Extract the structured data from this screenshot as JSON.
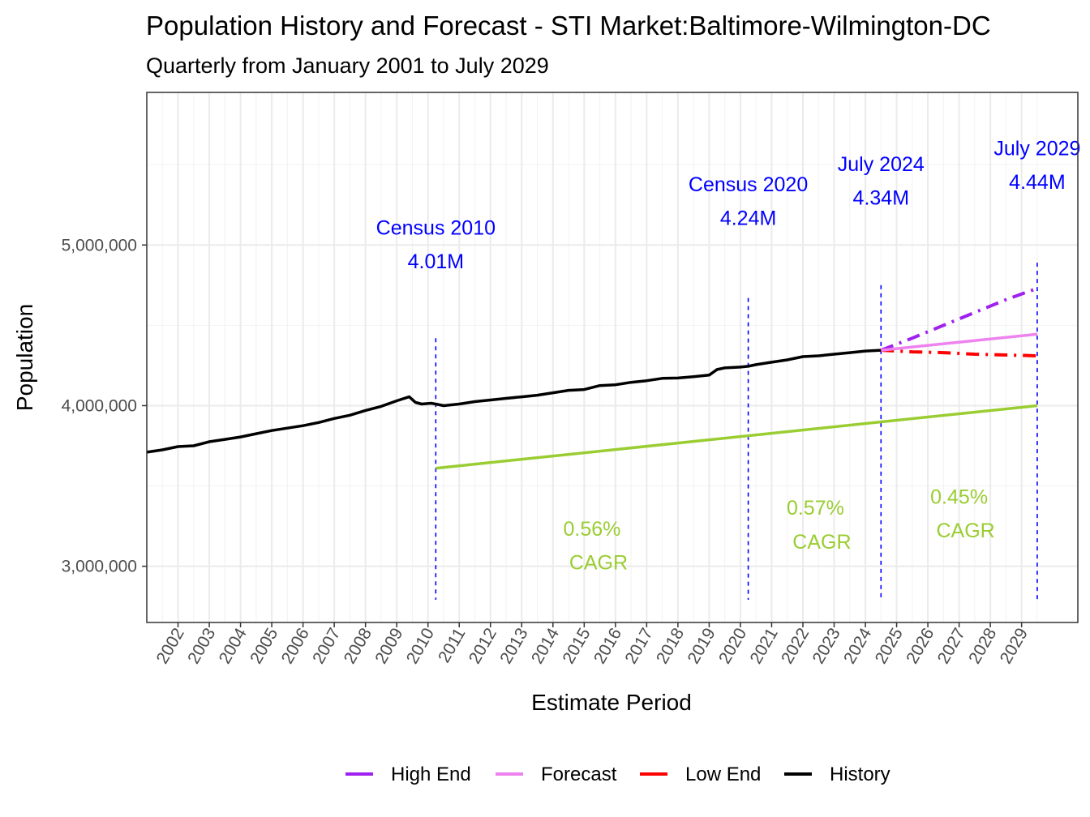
{
  "chart_data": {
    "type": "line",
    "title": "Population History and Forecast - STI Market:Baltimore-Wilmington-DC",
    "subtitle": "Quarterly from January 2001 to July 2029",
    "xlabel": "Estimate Period",
    "ylabel": "Population",
    "xlim": [
      2001,
      2030.8
    ],
    "ylim": [
      2650000,
      5950000
    ],
    "y_ticks": [
      3000000,
      4000000,
      5000000
    ],
    "y_tick_labels": [
      "3,000,000",
      "4,000,000",
      "5,000,000"
    ],
    "x_ticks": [
      2002,
      2003,
      2004,
      2005,
      2006,
      2007,
      2008,
      2009,
      2010,
      2011,
      2012,
      2013,
      2014,
      2015,
      2016,
      2017,
      2018,
      2019,
      2020,
      2021,
      2022,
      2023,
      2024,
      2025,
      2026,
      2027,
      2028,
      2029
    ],
    "x_tick_labels": [
      "2002",
      "2003",
      "2004",
      "2005",
      "2006",
      "2007",
      "2008",
      "2009",
      "2010",
      "2011",
      "2012",
      "2013",
      "2014",
      "2015",
      "2016",
      "2017",
      "2018",
      "2019",
      "2020",
      "2021",
      "2022",
      "2023",
      "2024",
      "2025",
      "2026",
      "2027",
      "2028",
      "2029"
    ],
    "series": [
      {
        "name": "History",
        "color": "#000000",
        "dash": "solid",
        "x": [
          2001.0,
          2001.5,
          2002.0,
          2002.5,
          2003.0,
          2003.5,
          2004.0,
          2004.5,
          2005.0,
          2005.5,
          2006.0,
          2006.5,
          2007.0,
          2007.5,
          2008.0,
          2008.5,
          2009.0,
          2009.4,
          2009.6,
          2009.8,
          2010.1,
          2010.25,
          2010.5,
          2011.0,
          2011.5,
          2012.0,
          2012.5,
          2013.0,
          2013.5,
          2014.0,
          2014.5,
          2015.0,
          2015.5,
          2016.0,
          2016.5,
          2017.0,
          2017.5,
          2018.0,
          2018.5,
          2019.0,
          2019.25,
          2019.5,
          2020.0,
          2020.25,
          2020.5,
          2021.0,
          2021.5,
          2022.0,
          2022.5,
          2023.0,
          2023.5,
          2024.0,
          2024.5
        ],
        "values": [
          3710000,
          3725000,
          3745000,
          3750000,
          3775000,
          3790000,
          3805000,
          3825000,
          3845000,
          3860000,
          3875000,
          3895000,
          3920000,
          3940000,
          3970000,
          3995000,
          4030000,
          4055000,
          4020000,
          4010000,
          4015000,
          4010000,
          4000000,
          4010000,
          4025000,
          4035000,
          4045000,
          4055000,
          4065000,
          4080000,
          4095000,
          4100000,
          4125000,
          4130000,
          4145000,
          4155000,
          4170000,
          4172000,
          4180000,
          4190000,
          4225000,
          4235000,
          4240000,
          4245000,
          4255000,
          4270000,
          4285000,
          4305000,
          4310000,
          4320000,
          4330000,
          4340000,
          4345000
        ]
      },
      {
        "name": "Forecast",
        "color": "#ee82ee",
        "dash": "solid",
        "x": [
          2024.5,
          2029.5
        ],
        "values": [
          4345000,
          4445000
        ]
      },
      {
        "name": "High End",
        "color": "#a020f0",
        "dash": "dashdot",
        "x": [
          2024.5,
          2025.5,
          2026.5,
          2027.5,
          2028.5,
          2029.5
        ],
        "values": [
          4345000,
          4420000,
          4500000,
          4580000,
          4660000,
          4730000
        ]
      },
      {
        "name": "Low End",
        "color": "#ff0000",
        "dash": "dashdot",
        "x": [
          2024.5,
          2025.5,
          2026.5,
          2027.5,
          2028.5,
          2029.5
        ],
        "values": [
          4345000,
          4335000,
          4330000,
          4320000,
          4315000,
          4310000
        ]
      },
      {
        "name": "CAGR Trend",
        "color": "#9acd32",
        "dash": "solid",
        "x": [
          2010.25,
          2029.5
        ],
        "values": [
          3610000,
          4000000
        ]
      }
    ],
    "vlines": [
      {
        "x": 2010.25,
        "y_top": 4420000
      },
      {
        "x": 2020.25,
        "y_top": 4670000
      },
      {
        "x": 2024.5,
        "y_top": 4750000
      },
      {
        "x": 2029.5,
        "y_top": 4890000
      }
    ],
    "annotations": [
      {
        "label": "Census 2010",
        "value": "4.01M",
        "x": 2010.25,
        "y": 5065000,
        "y2": 4855000
      },
      {
        "label": "Census 2020",
        "value": "4.24M",
        "x": 2020.25,
        "y": 5335000,
        "y2": 5125000
      },
      {
        "label": "July 2024",
        "value": "4.34M",
        "x": 2024.5,
        "y": 5460000,
        "y2": 5250000
      },
      {
        "label": "July 2029",
        "value": "4.44M",
        "x": 2029.5,
        "y": 5560000,
        "y2": 5350000
      }
    ],
    "cagr": [
      {
        "rate": "0.56%",
        "label": "CAGR",
        "x": 2015.25,
        "y": 3190000,
        "y2": 2980000
      },
      {
        "rate": "0.57%",
        "label": "CAGR",
        "x": 2022.4,
        "y": 3320000,
        "y2": 3110000
      },
      {
        "rate": "0.45%",
        "label": "CAGR",
        "x": 2027.0,
        "y": 3390000,
        "y2": 3180000
      }
    ],
    "legend": {
      "position": "bottom",
      "items": [
        {
          "name": "High End",
          "color": "#a020f0"
        },
        {
          "name": "Forecast",
          "color": "#ee82ee"
        },
        {
          "name": "Low End",
          "color": "#ff0000"
        },
        {
          "name": "History",
          "color": "#000000"
        }
      ]
    }
  }
}
